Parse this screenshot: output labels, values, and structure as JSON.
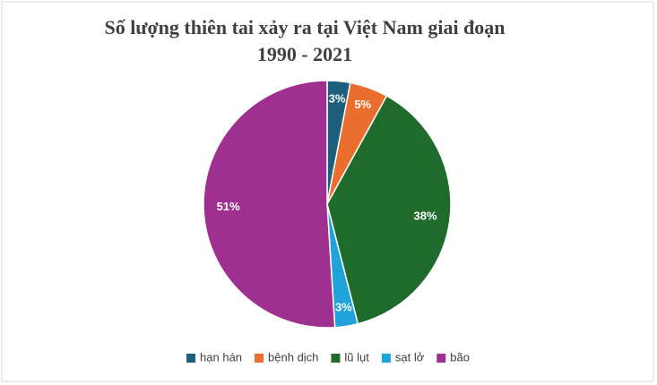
{
  "chart_data": {
    "type": "pie",
    "title": [
      "Số lượng thiên tai xảy ra tại Việt Nam giai đoạn",
      "1990 - 2021"
    ],
    "categories": [
      "hạn hán",
      "bệnh dịch",
      "lũ lụt",
      "sạt lở",
      "bão"
    ],
    "values": [
      3,
      5,
      38,
      3,
      51
    ],
    "value_labels": [
      "3%",
      "5%",
      "38%",
      "3%",
      "51%"
    ],
    "colors": [
      "#1f5f7e",
      "#ea6f2f",
      "#1e6b2b",
      "#1fa3d9",
      "#a0308f"
    ],
    "legend": "bottom"
  }
}
